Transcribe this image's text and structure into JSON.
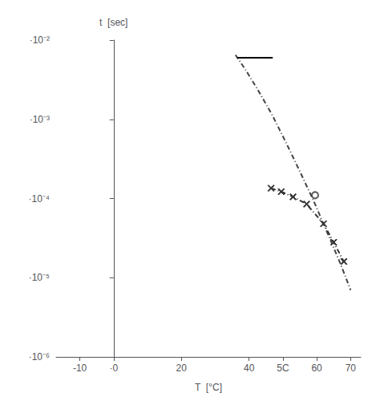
{
  "chart_data": {
    "type": "line",
    "xlabel": "T  [°C]",
    "ylabel": "t  [sec]",
    "log": "y",
    "grid": false,
    "xlim": [
      -17,
      73
    ],
    "xticks": [
      -10,
      {
        "value": 0,
        "label": "·0"
      },
      20,
      40,
      {
        "value": 50,
        "label": "5C"
      },
      60,
      70
    ],
    "ylim": [
      1e-06,
      0.01
    ],
    "yticks": [
      {
        "value": 1e-06,
        "label": "·10⁻⁶"
      },
      {
        "value": 1e-05,
        "label": "·10⁻⁵"
      },
      {
        "value": 0.0001,
        "label": "·10⁻⁴"
      },
      {
        "value": 0.001,
        "label": "·10⁻³"
      },
      {
        "value": 0.01,
        "label": "·10⁻²"
      }
    ],
    "series": [
      {
        "type": "line",
        "color": "#444444",
        "line_style": "dashdot",
        "x": [
          36,
          39,
          43,
          47,
          51,
          55,
          59,
          63,
          67,
          70
        ],
        "values": [
          0.0065,
          0.0042,
          0.0022,
          0.0011,
          0.0005,
          0.00022,
          9.5e-05,
          3.8e-05,
          1.5e-05,
          7e-06
        ]
      },
      {
        "type": "line",
        "color": "#000000",
        "line_style": "solid",
        "x": [
          36.5,
          47.0
        ],
        "values": [
          0.006,
          0.006
        ]
      },
      {
        "type": "line",
        "color": "#333333",
        "line_style": "dashdot",
        "marker": "x",
        "x": [
          46.5,
          49.5,
          53.0,
          57.0,
          62.0,
          65.0,
          68.0
        ],
        "values": [
          0.000135,
          0.000122,
          0.000105,
          8.5e-05,
          4.8e-05,
          2.8e-05,
          1.6e-05
        ]
      },
      {
        "type": "scatter",
        "color": "#333333",
        "marker": "circle",
        "x": [
          59.5
        ],
        "values": [
          0.00011
        ]
      }
    ]
  }
}
